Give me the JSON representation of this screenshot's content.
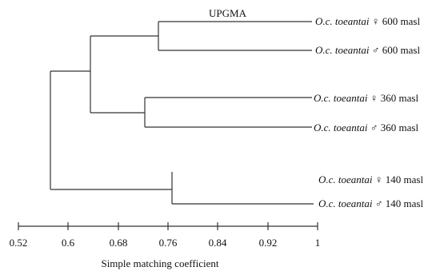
{
  "method_label": "UPGMA",
  "leaves": [
    {
      "taxon": "O.c. toeantai",
      "sex": "♀",
      "elevation": "600 masl"
    },
    {
      "taxon": "O.c. toeantai",
      "sex": "♂",
      "elevation": "600 masl"
    },
    {
      "taxon": "O.c. toeantai",
      "sex": "♀",
      "elevation": "360 masl"
    },
    {
      "taxon": "O.c. toeantai",
      "sex": "♂",
      "elevation": "360 masl"
    },
    {
      "taxon": "O.c. toeantai",
      "sex": "♀",
      "elevation": "140 masl"
    },
    {
      "taxon": "O.c. toeantai",
      "sex": "♂",
      "elevation": "140 masl"
    }
  ],
  "clusters": {
    "pair_600": 0.745,
    "pair_360": 0.715,
    "pair_140": 0.765,
    "group_600_360": 0.63,
    "root": 0.545
  },
  "axis": {
    "ticks": [
      "0.52",
      "0.6",
      "0.68",
      "0.76",
      "0.84",
      "0.92",
      "1"
    ],
    "label": "Simple matching coefficient",
    "min": 0.52,
    "max": 1
  }
}
